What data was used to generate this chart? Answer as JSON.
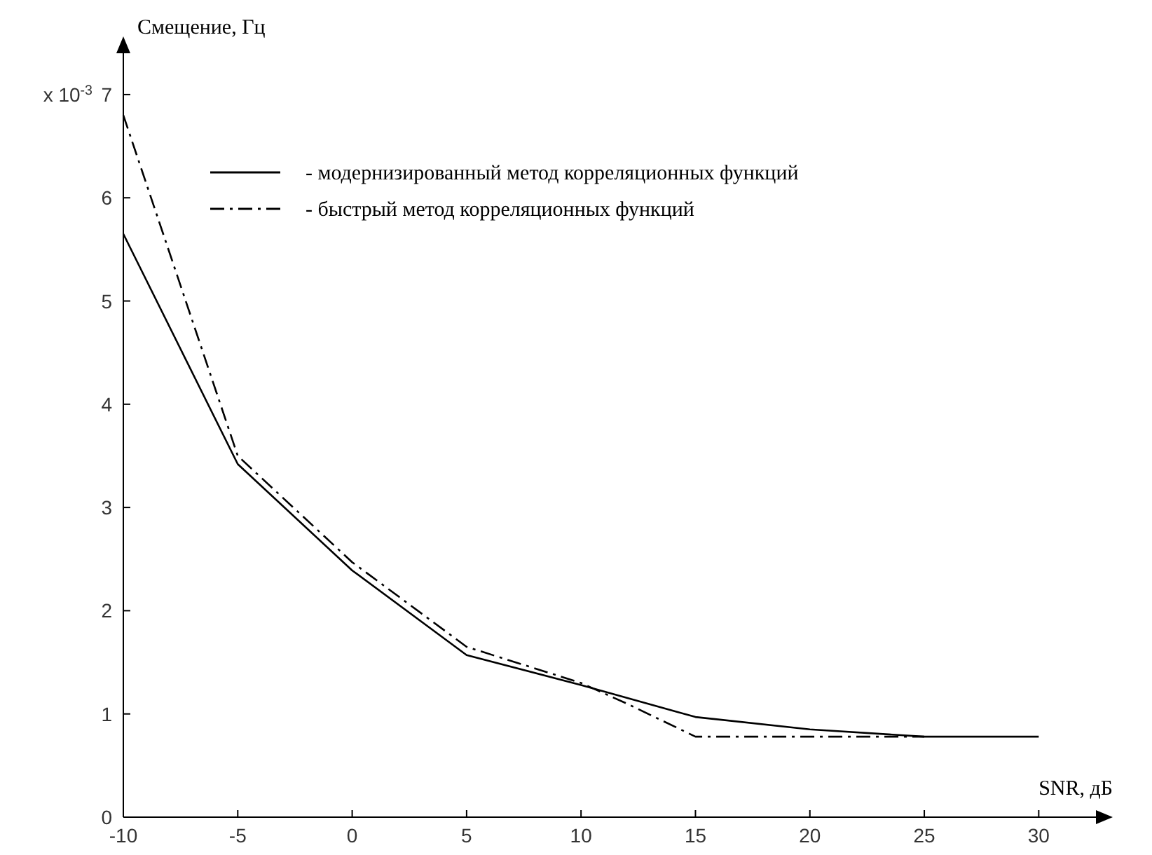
{
  "chart_data": {
    "type": "line",
    "xlabel": "SNR, дБ",
    "ylabel": "Смещение, Гц",
    "xlim": [
      -10,
      32.5
    ],
    "ylim": [
      0,
      7.4
    ],
    "xticks": [
      -10,
      -5,
      0,
      5,
      10,
      15,
      20,
      25,
      30
    ],
    "yticks": [
      0,
      1,
      2,
      3,
      4,
      5,
      6,
      7
    ],
    "annotations": [
      "x 10$^{-3}$"
    ],
    "legend": "top",
    "grid": false,
    "series": [
      {
        "name": "- модернизированный метод корреляционных функций",
        "color": "#000000",
        "line_style": "solid",
        "x": [
          -10,
          -5,
          0,
          5,
          10,
          15,
          20,
          25,
          30
        ],
        "values": [
          5.65,
          3.42,
          2.39,
          1.57,
          1.28,
          0.97,
          0.85,
          0.78,
          0.78
        ]
      },
      {
        "name": "- быстрый метод корреляционных функций",
        "color": "#000000",
        "line_style": "dashdot",
        "x": [
          -10,
          -5,
          0,
          5,
          10,
          12,
          15,
          20,
          25
        ],
        "values": [
          6.8,
          3.5,
          2.47,
          1.65,
          1.3,
          1.1,
          0.78,
          0.78,
          0.78
        ]
      }
    ]
  }
}
